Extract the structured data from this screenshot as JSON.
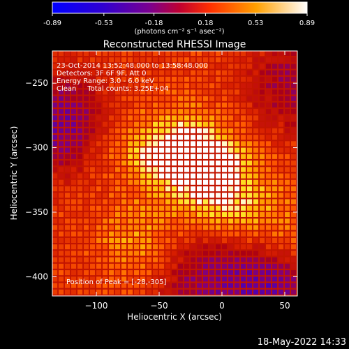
{
  "colorbar": {
    "ticks": [
      "-0.89",
      "-0.53",
      "-0.18",
      "0.18",
      "0.53",
      "0.89"
    ],
    "unit_label": "(photons cm⁻² s⁻¹ asec⁻²)",
    "range": [
      -0.89,
      0.89
    ]
  },
  "chart_data": {
    "type": "heatmap",
    "title": "Reconstructed RHESSI Image",
    "xlabel": "Heliocentric X (arcsec)",
    "ylabel": "Heliocentric Y (arcsec)",
    "xlim": [
      -135,
      60
    ],
    "ylim": [
      -415,
      -225
    ],
    "xticks": [
      -100,
      -50,
      0,
      50
    ],
    "yticks": [
      -250,
      -300,
      -350,
      -400
    ],
    "annotations": [
      "23-Oct-2014 13:52:48.000 to 13:58:48.000",
      "Detectors: 3F 6F 9F, Att 0",
      "Energy Range: 3.0 - 6.0 keV",
      "Clean     Total counts: 3.25E+04"
    ],
    "peak_label": "Position of Peak = [-28,-305]",
    "peak": [
      -28,
      -305
    ],
    "hot_spots": [
      {
        "x": -40,
        "y": -302,
        "level": 0.89
      },
      {
        "x": -15,
        "y": -310,
        "level": 0.74
      },
      {
        "x": 0,
        "y": -338,
        "level": 0.68
      },
      {
        "x": -70,
        "y": -370,
        "level": 0.6
      },
      {
        "x": -95,
        "y": -290,
        "level": 0.45
      },
      {
        "x": 55,
        "y": -380,
        "level": 0.55
      },
      {
        "x": 30,
        "y": -350,
        "level": 0.5
      }
    ],
    "cold_spots": [
      {
        "x": -130,
        "y": -280,
        "level": -0.35
      },
      {
        "x": 40,
        "y": -405,
        "level": -0.4
      },
      {
        "x": -15,
        "y": -400,
        "level": -0.15
      },
      {
        "x": 55,
        "y": -250,
        "level": -0.1
      }
    ],
    "colormap": "heat",
    "grid": false
  },
  "timestamp": "18-May-2022 14:33"
}
